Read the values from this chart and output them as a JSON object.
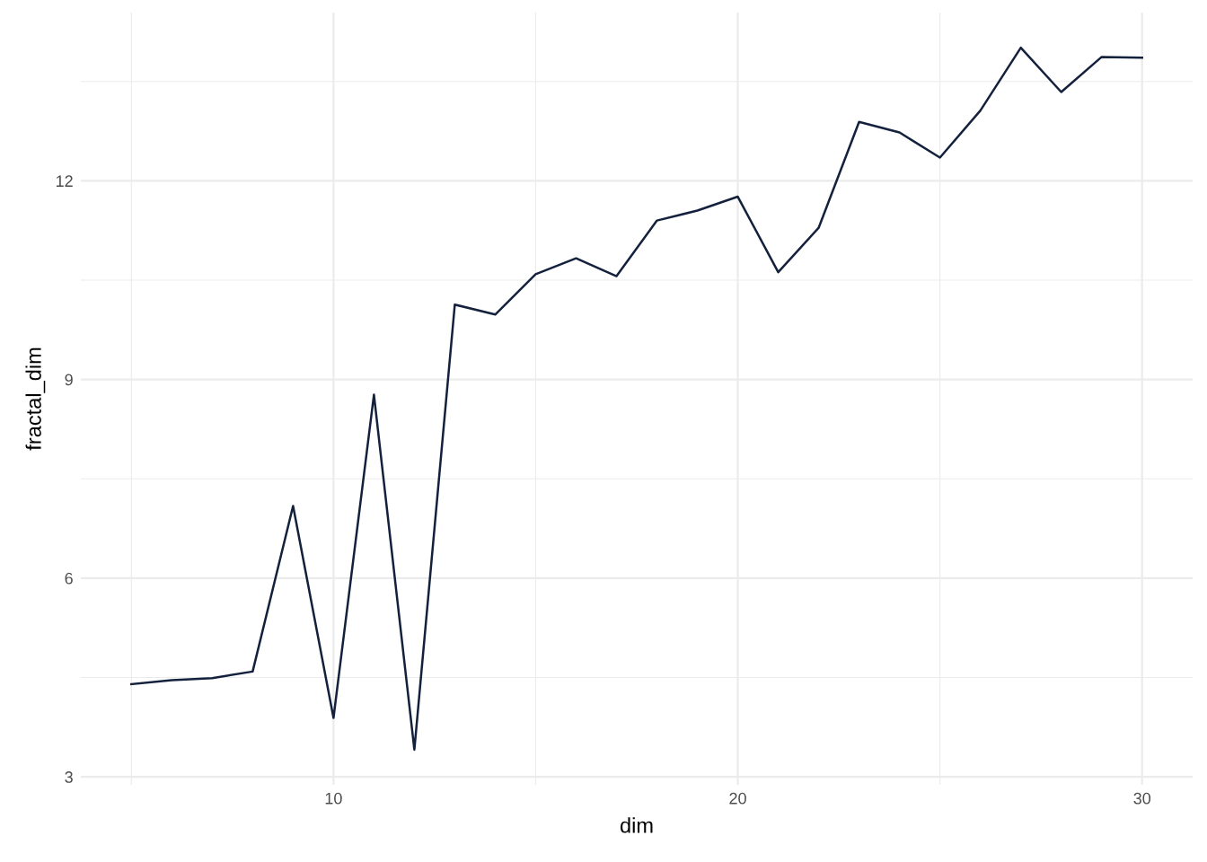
{
  "chart_data": {
    "type": "line",
    "xlabel": "dim",
    "ylabel": "fractal_dim",
    "x": [
      5,
      6,
      7,
      8,
      9,
      10,
      11,
      12,
      13,
      14,
      15,
      16,
      17,
      18,
      19,
      20,
      21,
      22,
      23,
      24,
      25,
      26,
      27,
      28,
      29,
      30
    ],
    "series": [
      {
        "color": "#14213d",
        "values": [
          4.4,
          4.46,
          4.49,
          4.59,
          7.09,
          3.89,
          8.77,
          3.41,
          10.13,
          9.98,
          10.59,
          10.83,
          10.56,
          11.4,
          11.55,
          11.76,
          10.62,
          11.29,
          12.89,
          12.73,
          12.35,
          13.06,
          14.01,
          13.34,
          13.87,
          13.86
        ]
      }
    ],
    "xlim": [
      3.75,
      31.25
    ],
    "ylim": [
      2.88,
      14.54
    ],
    "xticks": [
      {
        "value": 5,
        "label": null
      },
      10,
      {
        "value": 15,
        "label": null
      },
      20,
      {
        "value": 25,
        "label": null
      },
      30
    ],
    "yticks": [
      3,
      {
        "value": 4.5,
        "label": null
      },
      6,
      {
        "value": 7.5,
        "label": null
      },
      9,
      {
        "value": 10.5,
        "label": null
      },
      12,
      {
        "value": 13.5,
        "label": null
      }
    ],
    "grid": true,
    "line_style": "solid",
    "marker": "none"
  }
}
